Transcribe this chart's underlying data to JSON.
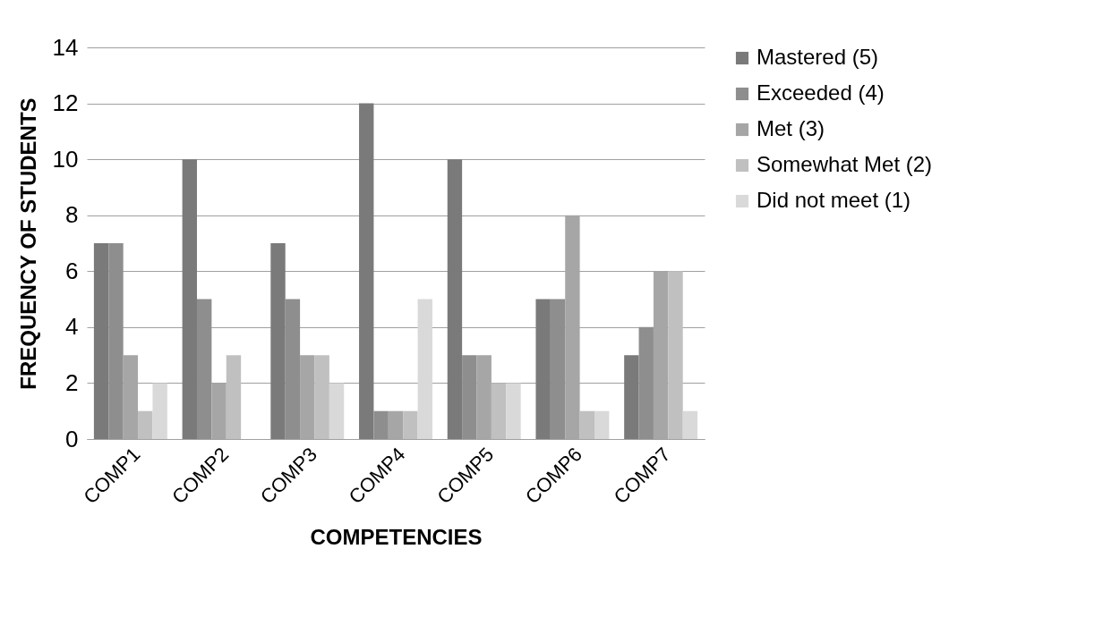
{
  "chart_data": {
    "type": "bar",
    "xlabel": "COMPETENCIES",
    "ylabel": "FREQUENCY OF STUDENTS",
    "categories": [
      "COMP1",
      "COMP2",
      "COMP3",
      "COMP4",
      "COMP5",
      "COMP6",
      "COMP7"
    ],
    "series": [
      {
        "name": "Mastered (5)",
        "color": "#7a7a7a",
        "values": [
          7,
          10,
          7,
          12,
          10,
          5,
          3
        ]
      },
      {
        "name": "Exceeded (4)",
        "color": "#8e8e8e",
        "values": [
          7,
          5,
          5,
          1,
          3,
          5,
          4
        ]
      },
      {
        "name": "Met (3)",
        "color": "#a6a6a6",
        "values": [
          3,
          2,
          3,
          1,
          3,
          8,
          6
        ]
      },
      {
        "name": "Somewhat Met (2)",
        "color": "#c0c0c0",
        "values": [
          1,
          3,
          3,
          1,
          2,
          1,
          6
        ]
      },
      {
        "name": "Did not meet (1)",
        "color": "#d9d9d9",
        "values": [
          2,
          0,
          2,
          5,
          2,
          1,
          1
        ]
      }
    ],
    "ylim": [
      0,
      14
    ],
    "yticks": [
      0,
      2,
      4,
      6,
      8,
      10,
      12,
      14
    ],
    "grid": "y",
    "legend": "right"
  }
}
